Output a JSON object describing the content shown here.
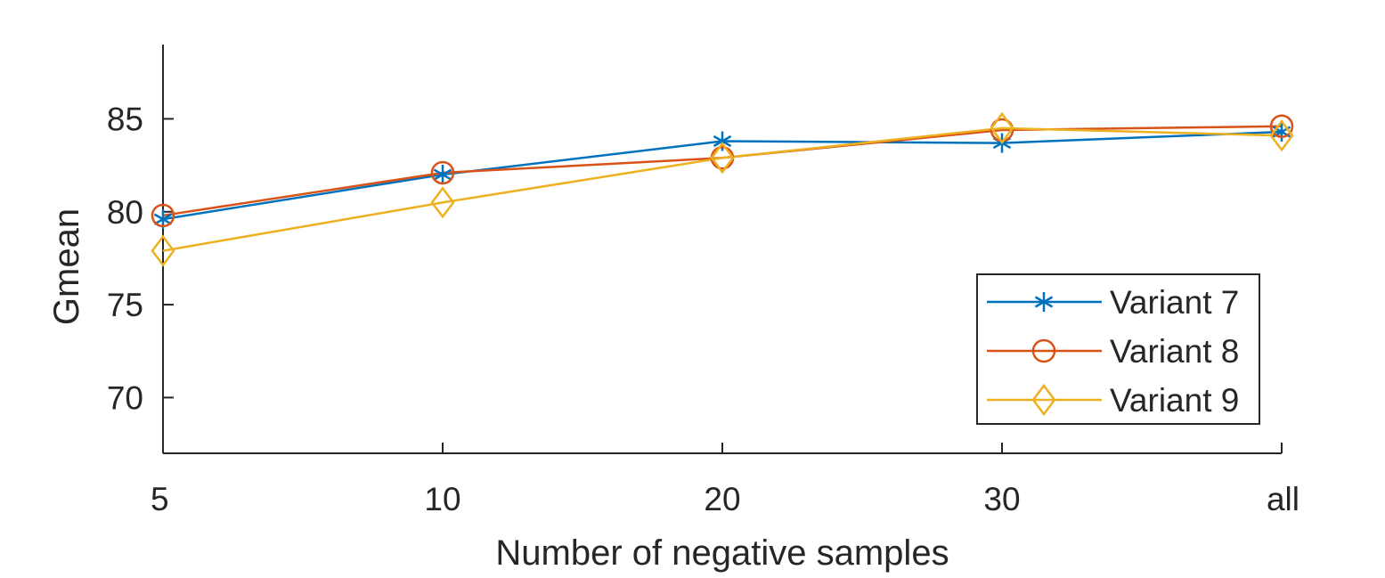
{
  "chart_data": {
    "type": "line",
    "title": "",
    "xlabel": "Number of negative samples",
    "ylabel": "Gmean",
    "categories": [
      "5",
      "10",
      "20",
      "30",
      "all"
    ],
    "ylim": [
      67,
      89
    ],
    "yticks": [
      70,
      75,
      80,
      85
    ],
    "grid": false,
    "legend_position": "bottom-right",
    "series": [
      {
        "name": "Variant 7",
        "marker": "asterisk",
        "color": "#0072BD",
        "values": [
          79.6,
          82.0,
          83.8,
          83.7,
          84.3
        ]
      },
      {
        "name": "Variant 8",
        "marker": "circle",
        "color": "#D95319",
        "values": [
          79.8,
          82.1,
          82.9,
          84.4,
          84.6
        ]
      },
      {
        "name": "Variant 9",
        "marker": "diamond",
        "color": "#EDB120",
        "values": [
          77.9,
          80.5,
          82.9,
          84.5,
          84.1
        ]
      }
    ]
  }
}
